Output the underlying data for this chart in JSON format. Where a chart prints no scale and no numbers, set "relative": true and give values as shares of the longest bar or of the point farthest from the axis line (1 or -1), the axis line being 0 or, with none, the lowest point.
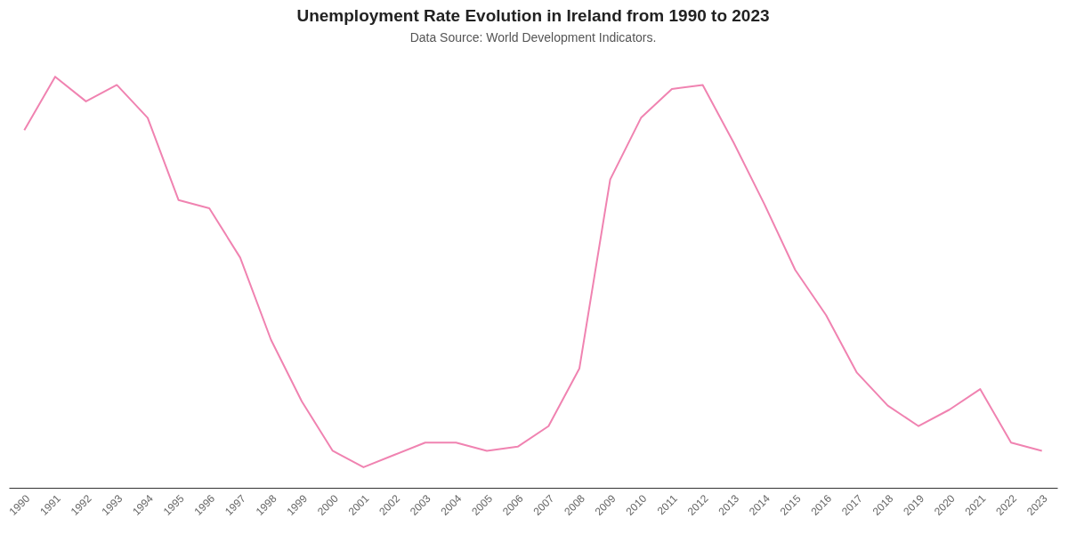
{
  "chart_data": {
    "type": "line",
    "title": "Unemployment Rate Evolution in Ireland from 1990 to 2023",
    "subtitle": "Data Source: World Development Indicators.",
    "relative": true,
    "categories": [
      "1990",
      "1991",
      "1992",
      "1993",
      "1994",
      "1995",
      "1996",
      "1997",
      "1998",
      "1999",
      "2000",
      "2001",
      "2002",
      "2003",
      "2004",
      "2005",
      "2006",
      "2007",
      "2008",
      "2009",
      "2010",
      "2011",
      "2012",
      "2013",
      "2014",
      "2015",
      "2016",
      "2017",
      "2018",
      "2019",
      "2020",
      "2021",
      "2022",
      "2023"
    ],
    "series": [
      {
        "color": "#f083b1",
        "values": [
          0.87,
          1,
          0.94,
          0.98,
          0.9,
          0.7,
          0.68,
          0.56,
          0.36,
          0.21,
          0.09,
          0.05,
          0.08,
          0.11,
          0.11,
          0.09,
          0.1,
          0.15,
          0.29,
          0.75,
          0.9,
          0.97,
          0.98,
          0.84,
          0.69,
          0.53,
          0.42,
          0.28,
          0.2,
          0.15,
          0.19,
          0.24,
          0.11,
          0.09
        ]
      }
    ]
  }
}
